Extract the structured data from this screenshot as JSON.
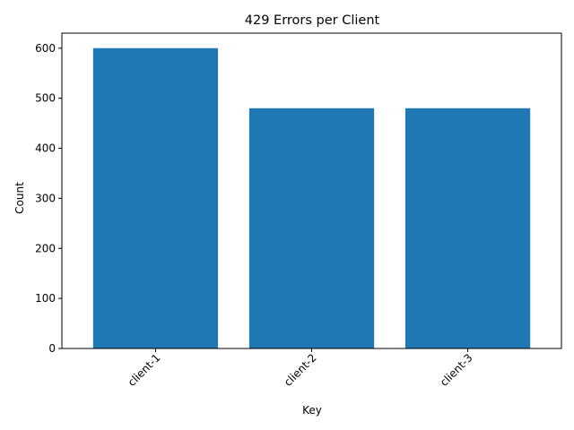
{
  "chart_data": {
    "type": "bar",
    "title": "429 Errors per Client",
    "xlabel": "Key",
    "ylabel": "Count",
    "categories": [
      "client-1",
      "client-2",
      "client-3"
    ],
    "values": [
      600,
      480,
      480
    ],
    "ylim": [
      0,
      630
    ],
    "yticks": [
      0,
      100,
      200,
      300,
      400,
      500,
      600
    ],
    "bar_color": "#1f77b4",
    "grid": false,
    "legend": "none"
  }
}
